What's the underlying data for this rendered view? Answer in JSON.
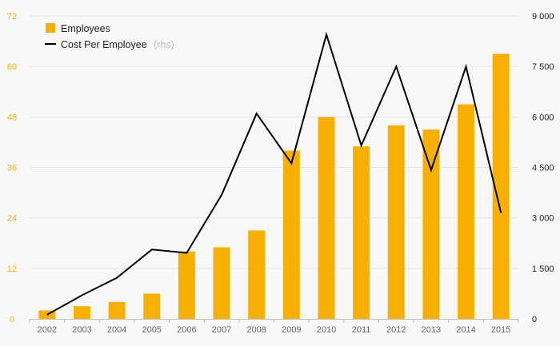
{
  "chart_data": {
    "type": "bar",
    "categories": [
      "2002",
      "2003",
      "2004",
      "2005",
      "2006",
      "2007",
      "2008",
      "2009",
      "2010",
      "2011",
      "2012",
      "2013",
      "2014",
      "2015"
    ],
    "series": [
      {
        "name": "Employees",
        "type": "bar",
        "axis": "left",
        "color": "#f8b000",
        "values": [
          2,
          3,
          4,
          6,
          16,
          17,
          21,
          40,
          48,
          41,
          46,
          45,
          51,
          63
        ]
      },
      {
        "name": "Cost Per Employee",
        "name_suffix": "(rhs)",
        "type": "line",
        "axis": "right",
        "color": "#000000",
        "values": [
          120,
          700,
          1220,
          2060,
          1960,
          3680,
          6100,
          4620,
          8450,
          5150,
          7500,
          4420,
          7500,
          3150
        ]
      }
    ],
    "left_axis": {
      "ylim": [
        0,
        72
      ],
      "ticks": [
        "0",
        "12",
        "24",
        "36",
        "48",
        "60",
        "72"
      ],
      "color": "#f5b000"
    },
    "right_axis": {
      "ylim": [
        0,
        9000
      ],
      "ticks": [
        "0",
        "1 500",
        "3 000",
        "4 500",
        "6 000",
        "7 500",
        "9 000"
      ]
    },
    "grid": true,
    "legend": "top-left"
  }
}
